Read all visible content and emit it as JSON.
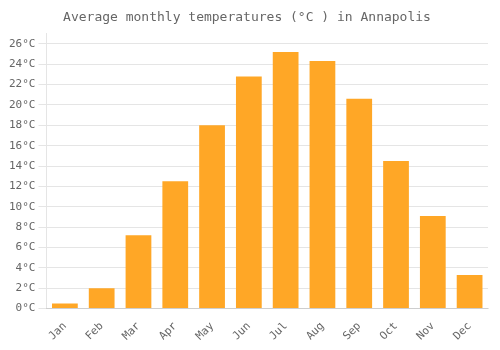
{
  "chart_data": {
    "type": "bar",
    "title": "Average monthly temperatures (°C ) in Annapolis",
    "categories": [
      "Jan",
      "Feb",
      "Mar",
      "Apr",
      "May",
      "Jun",
      "Jul",
      "Aug",
      "Sep",
      "Oct",
      "Nov",
      "Dec"
    ],
    "values": [
      0.5,
      2.0,
      7.2,
      12.5,
      18.0,
      22.8,
      25.2,
      24.3,
      20.6,
      14.5,
      9.1,
      3.3
    ],
    "color": "#FFA726",
    "ylim": [
      0,
      27
    ],
    "yticks": [
      {
        "value": 0,
        "label": "0°C"
      },
      {
        "value": 2,
        "label": "2°C"
      },
      {
        "value": 4,
        "label": "4°C"
      },
      {
        "value": 6,
        "label": "6°C"
      },
      {
        "value": 8,
        "label": "8°C"
      },
      {
        "value": 10,
        "label": "10°C"
      },
      {
        "value": 12,
        "label": "12°C"
      },
      {
        "value": 14,
        "label": "14°C"
      },
      {
        "value": 16,
        "label": "16°C"
      },
      {
        "value": 18,
        "label": "18°C"
      },
      {
        "value": 20,
        "label": "20°C"
      },
      {
        "value": 22,
        "label": "22°C"
      },
      {
        "value": 24,
        "label": "24°C"
      },
      {
        "value": 26,
        "label": "26°C"
      }
    ],
    "grid": true
  }
}
